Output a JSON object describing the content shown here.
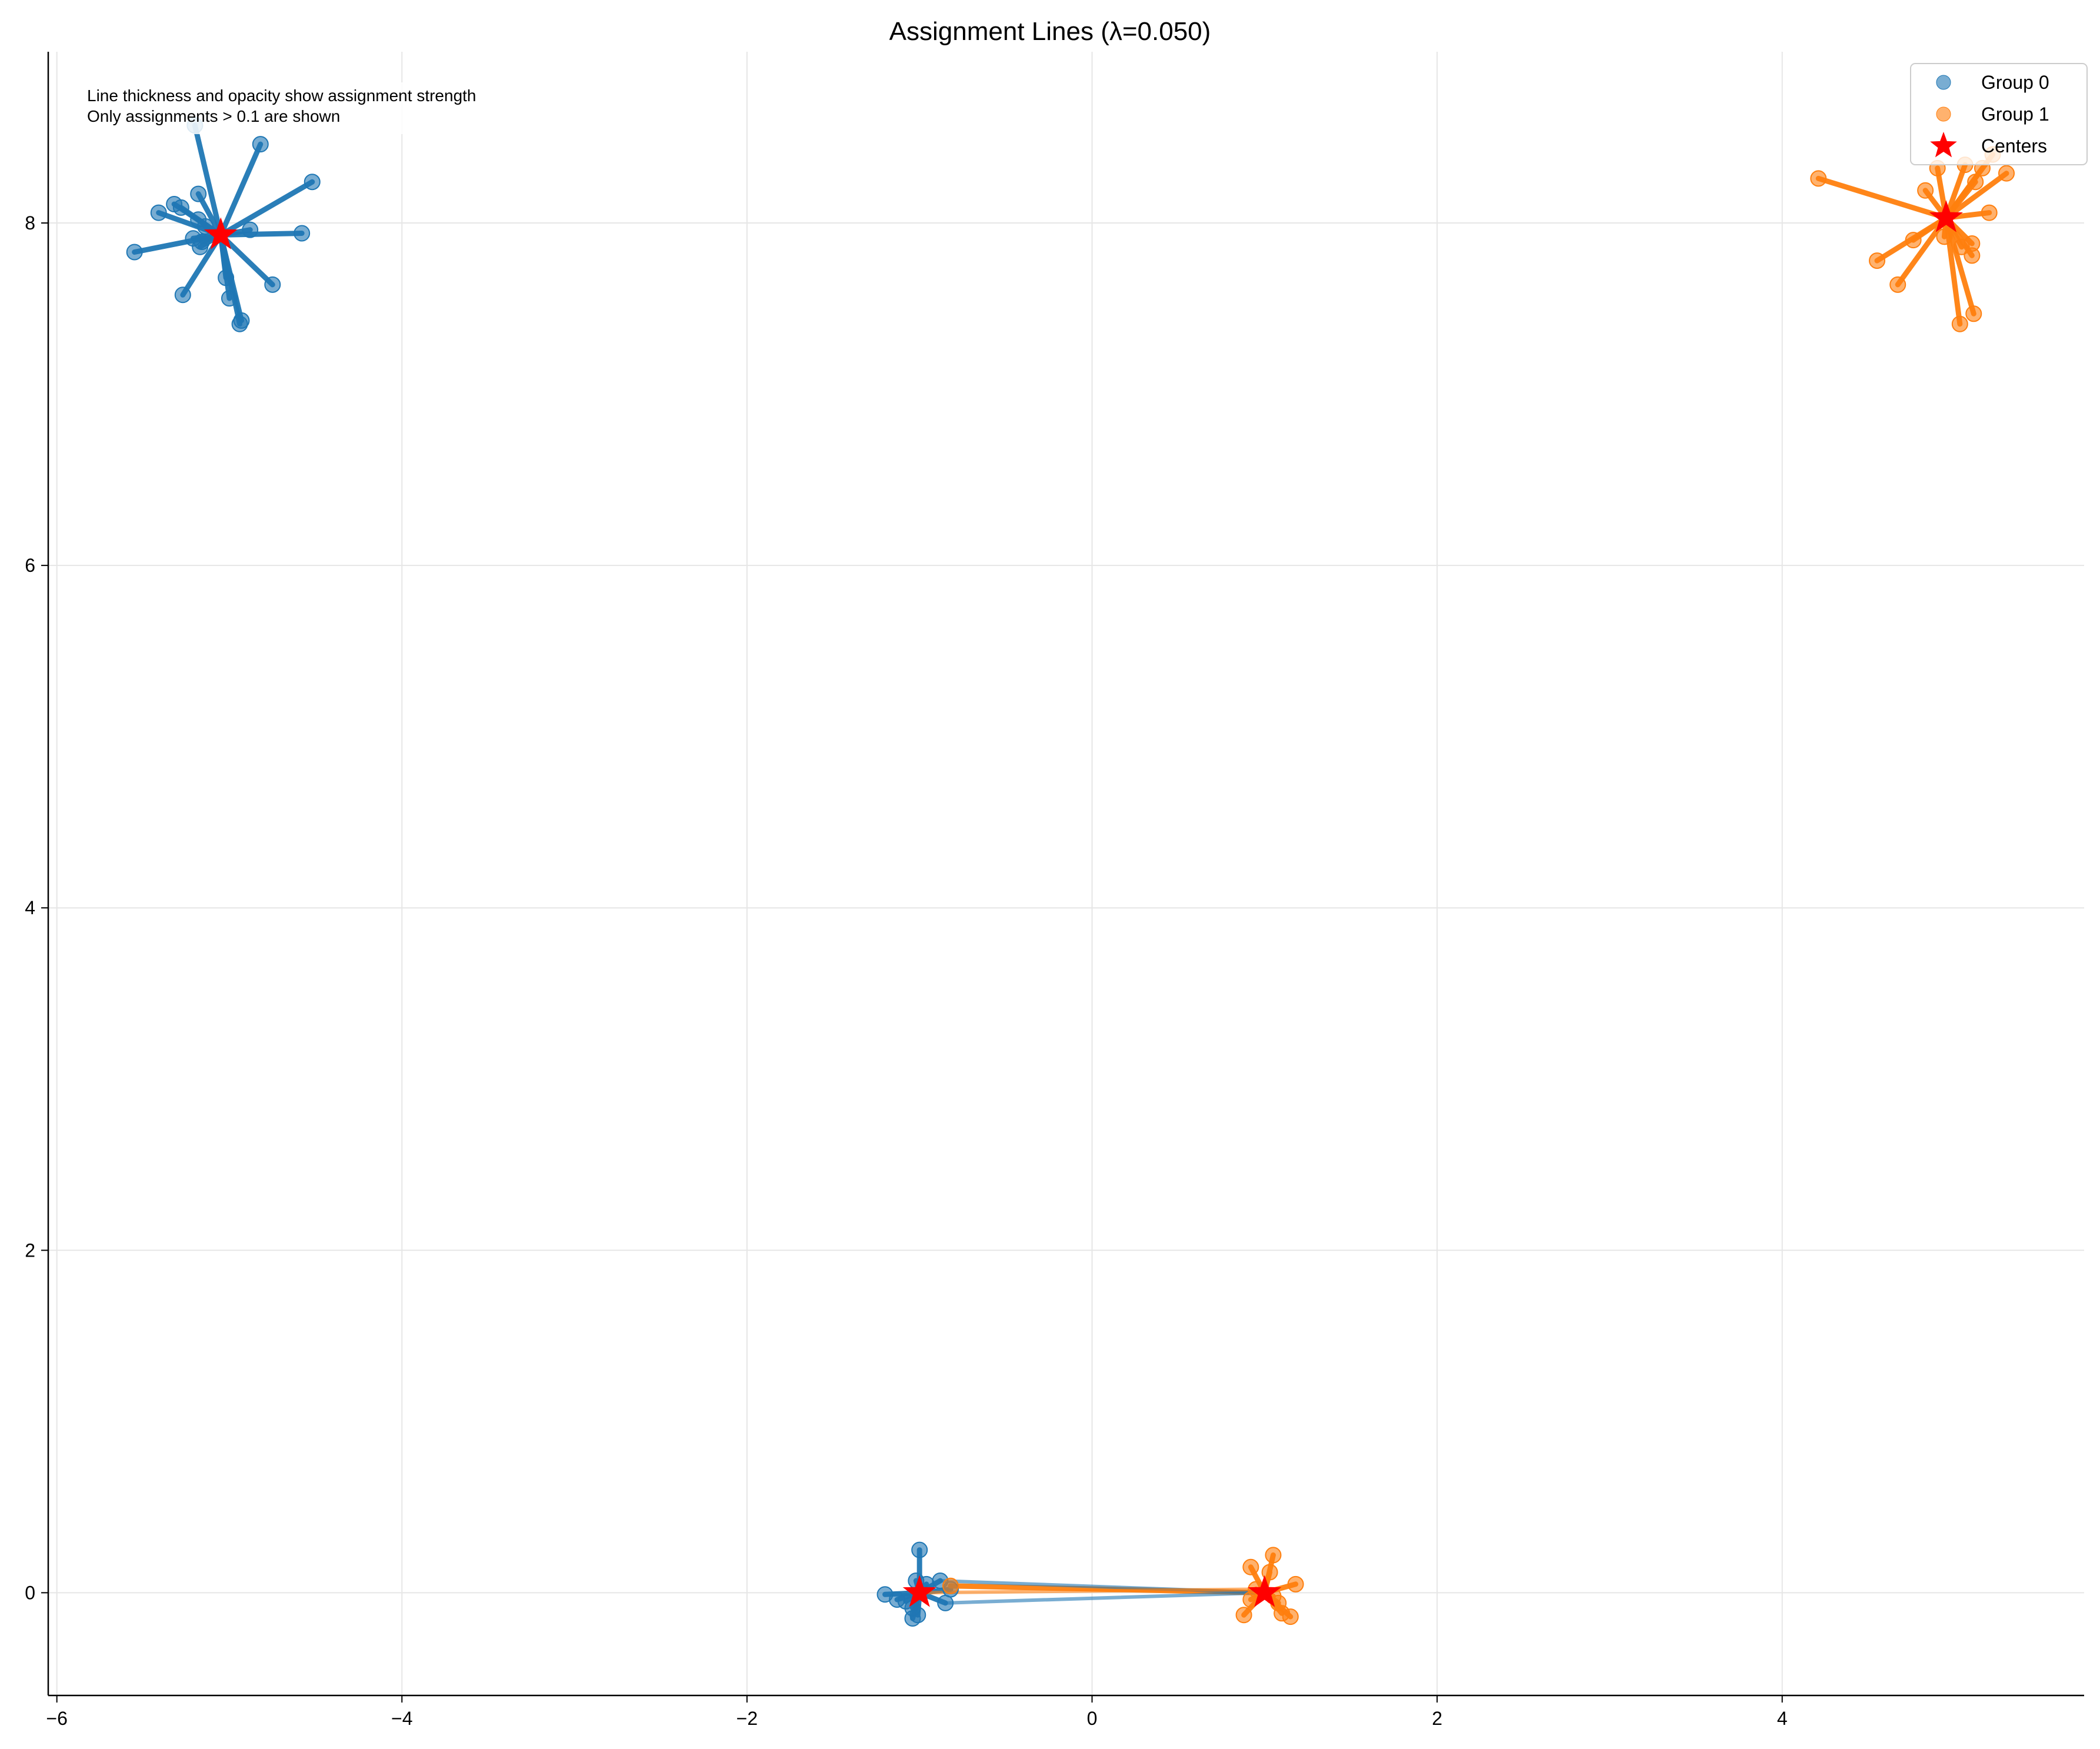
{
  "chart_data": {
    "type": "scatter",
    "title": "Assignment Lines (λ=0.050)",
    "xlabel": "",
    "ylabel": "",
    "xlim": [
      -6.05,
      5.75
    ],
    "ylim": [
      -0.6,
      9.0
    ],
    "xticks": [
      -6,
      -4,
      -2,
      0,
      2,
      4
    ],
    "xtick_labels": [
      "−6",
      "−4",
      "−2",
      "0",
      "2",
      "4"
    ],
    "yticks": [
      0,
      2,
      4,
      6,
      8
    ],
    "ytick_labels": [
      "0",
      "2",
      "4",
      "6",
      "8"
    ],
    "grid": true,
    "legend_position": "top-right",
    "annotation_lines": [
      "Line thickness and opacity show assignment strength",
      "Only assignments > 0.1 are shown"
    ],
    "colors": {
      "group0": "#1f77b4",
      "group1": "#ff7f0e",
      "centers": "#ff0000",
      "grid": "#e6e6e6"
    },
    "legend": [
      {
        "label": "Group 0",
        "marker": "circle",
        "color": "#1f77b4"
      },
      {
        "label": "Group 1",
        "marker": "circle",
        "color": "#ff7f0e"
      },
      {
        "label": "Centers",
        "marker": "star",
        "color": "#ff0000"
      }
    ],
    "centers": [
      {
        "x": -5.05,
        "y": 7.93
      },
      {
        "x": -1.0,
        "y": 0.0
      },
      {
        "x": 1.0,
        "y": 0.0
      },
      {
        "x": 4.95,
        "y": 8.03
      }
    ],
    "series": [
      {
        "name": "Group 0",
        "color": "#1f77b4",
        "points": [
          {
            "x": -5.2,
            "y": 8.57,
            "c": 0
          },
          {
            "x": -4.82,
            "y": 8.46,
            "c": 0
          },
          {
            "x": -4.52,
            "y": 8.24,
            "c": 0
          },
          {
            "x": -5.18,
            "y": 8.17,
            "c": 0
          },
          {
            "x": -5.32,
            "y": 8.11,
            "c": 0
          },
          {
            "x": -5.28,
            "y": 8.09,
            "c": 0
          },
          {
            "x": -5.41,
            "y": 8.06,
            "c": 0
          },
          {
            "x": -5.18,
            "y": 8.02,
            "c": 0
          },
          {
            "x": -5.14,
            "y": 7.98,
            "c": 0
          },
          {
            "x": -4.88,
            "y": 7.96,
            "c": 0
          },
          {
            "x": -4.58,
            "y": 7.94,
            "c": 0
          },
          {
            "x": -5.21,
            "y": 7.91,
            "c": 0
          },
          {
            "x": -5.16,
            "y": 7.89,
            "c": 0
          },
          {
            "x": -5.17,
            "y": 7.86,
            "c": 0
          },
          {
            "x": -5.55,
            "y": 7.83,
            "c": 0
          },
          {
            "x": -5.02,
            "y": 7.68,
            "c": 0
          },
          {
            "x": -4.75,
            "y": 7.64,
            "c": 0
          },
          {
            "x": -5.27,
            "y": 7.58,
            "c": 0
          },
          {
            "x": -5.0,
            "y": 7.56,
            "c": 0
          },
          {
            "x": -4.93,
            "y": 7.43,
            "c": 0
          },
          {
            "x": -4.94,
            "y": 7.41,
            "c": 0
          },
          {
            "x": -1.0,
            "y": 0.25,
            "c": 1
          },
          {
            "x": -0.88,
            "y": 0.07,
            "c": 1
          },
          {
            "x": -1.02,
            "y": 0.07,
            "c": 1
          },
          {
            "x": -0.96,
            "y": 0.05,
            "c": 1
          },
          {
            "x": -0.82,
            "y": 0.02,
            "c": 1
          },
          {
            "x": -1.2,
            "y": -0.01,
            "c": 1
          },
          {
            "x": -1.13,
            "y": -0.04,
            "c": 1
          },
          {
            "x": -1.08,
            "y": -0.05,
            "c": 1
          },
          {
            "x": -0.85,
            "y": -0.06,
            "c": 1
          },
          {
            "x": -1.04,
            "y": -0.09,
            "c": 1
          },
          {
            "x": -1.01,
            "y": -0.13,
            "c": 1
          },
          {
            "x": -1.04,
            "y": -0.15,
            "c": 1
          }
        ]
      },
      {
        "name": "Group 1",
        "color": "#ff7f0e",
        "points": [
          {
            "x": 5.22,
            "y": 8.4,
            "c": 3
          },
          {
            "x": 5.06,
            "y": 8.34,
            "c": 3
          },
          {
            "x": 4.9,
            "y": 8.32,
            "c": 3
          },
          {
            "x": 5.16,
            "y": 8.32,
            "c": 3
          },
          {
            "x": 5.3,
            "y": 8.29,
            "c": 3
          },
          {
            "x": 4.21,
            "y": 8.26,
            "c": 3
          },
          {
            "x": 5.12,
            "y": 8.24,
            "c": 3
          },
          {
            "x": 4.83,
            "y": 8.19,
            "c": 3
          },
          {
            "x": 5.2,
            "y": 8.06,
            "c": 3
          },
          {
            "x": 4.94,
            "y": 7.92,
            "c": 3
          },
          {
            "x": 4.76,
            "y": 7.9,
            "c": 3
          },
          {
            "x": 5.1,
            "y": 7.88,
            "c": 3
          },
          {
            "x": 5.04,
            "y": 7.86,
            "c": 3
          },
          {
            "x": 5.1,
            "y": 7.81,
            "c": 3
          },
          {
            "x": 4.55,
            "y": 7.78,
            "c": 3
          },
          {
            "x": 4.67,
            "y": 7.64,
            "c": 3
          },
          {
            "x": 5.11,
            "y": 7.47,
            "c": 3
          },
          {
            "x": 5.03,
            "y": 7.41,
            "c": 3
          },
          {
            "x": 1.05,
            "y": 0.22,
            "c": 2
          },
          {
            "x": 0.92,
            "y": 0.15,
            "c": 2
          },
          {
            "x": 1.03,
            "y": 0.12,
            "c": 2
          },
          {
            "x": 1.18,
            "y": 0.05,
            "c": 2
          },
          {
            "x": 0.95,
            "y": 0.02,
            "c": 2
          },
          {
            "x": 1.05,
            "y": -0.02,
            "c": 2
          },
          {
            "x": 0.92,
            "y": -0.04,
            "c": 2
          },
          {
            "x": 1.08,
            "y": -0.06,
            "c": 2
          },
          {
            "x": 1.1,
            "y": -0.12,
            "c": 2
          },
          {
            "x": 0.88,
            "y": -0.13,
            "c": 2
          },
          {
            "x": 1.15,
            "y": -0.14,
            "c": 2
          },
          {
            "x": -0.82,
            "y": 0.04,
            "c": 2
          }
        ]
      }
    ],
    "cross_assignments": [
      {
        "x": -0.88,
        "y": 0.07,
        "to": 2,
        "color": "#1f77b4"
      },
      {
        "x": -0.85,
        "y": -0.06,
        "to": 2,
        "color": "#1f77b4"
      },
      {
        "x": 0.92,
        "y": 0.02,
        "to": 1,
        "color": "#ff7f0e"
      }
    ]
  }
}
